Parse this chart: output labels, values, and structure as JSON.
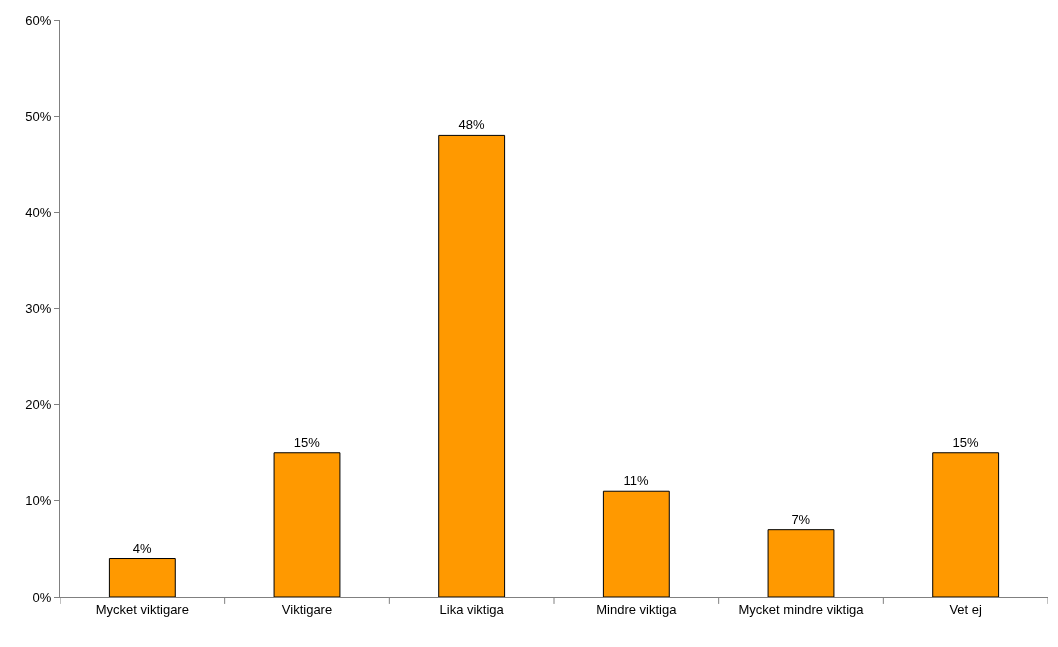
{
  "chart_data": {
    "type": "bar",
    "categories": [
      "Mycket viktigare",
      "Viktigare",
      "Lika viktiga",
      "Mindre viktiga",
      "Mycket mindre viktiga",
      "Vet ej"
    ],
    "values": [
      4,
      15,
      48,
      11,
      7,
      15
    ],
    "color": "#ff9900",
    "ylim": [
      0,
      60
    ],
    "yticks": [
      {
        "value": 0,
        "label": "0%"
      },
      {
        "value": 10,
        "label": "10%"
      },
      {
        "value": 20,
        "label": "20%"
      },
      {
        "value": 30,
        "label": "30%"
      },
      {
        "value": 40,
        "label": "40%"
      },
      {
        "value": 50,
        "label": "50%"
      },
      {
        "value": 60,
        "label": "60%"
      }
    ],
    "value_labels": [
      "4%",
      "15%",
      "48%",
      "11%",
      "7%",
      "15%"
    ],
    "legend": false
  }
}
